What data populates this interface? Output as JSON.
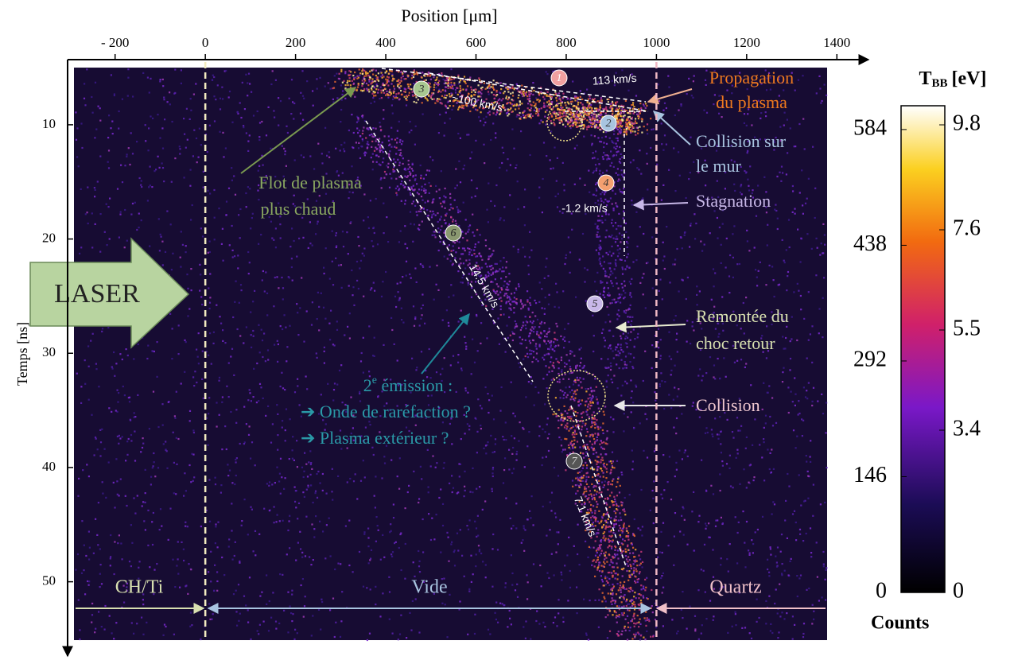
{
  "chart_data": {
    "type": "image",
    "title": "Position [μm]",
    "y_label": "Temps [ns]",
    "xlim": [
      -300,
      1470
    ],
    "xticks": [
      {
        "value": -200,
        "label": "- 200"
      },
      0,
      200,
      400,
      600,
      800,
      1000,
      1200,
      1400
    ],
    "ylim": [
      4.3,
      56.5
    ],
    "yticks": [
      10,
      20,
      30,
      40,
      50
    ],
    "boundaries": [
      0,
      1000
    ],
    "regions": [
      "CH/Ti",
      "Vide",
      "Quartz"
    ],
    "laser": "LASER",
    "colorbar": {
      "title": "T",
      "title_sub": "BB",
      "title_unit": "[eV]",
      "counts_label": "Counts",
      "counts_lim": [
        0,
        614
      ],
      "counts_ticks": [
        0,
        146,
        292,
        438,
        584
      ],
      "temp_lim": [
        0,
        10.2
      ],
      "temp_ticks": [
        0,
        3.4,
        5.5,
        7.6,
        9.8
      ]
    },
    "steps": [
      "1",
      "2",
      "3",
      "4",
      "5",
      "6",
      "7"
    ],
    "velocities": [
      "113 km/s",
      "~100 km/s",
      "-1.2 km/s",
      "14.5 km/s",
      "7.1 km/s"
    ],
    "annotations": {
      "propagation": [
        "Propagation",
        "du plasma"
      ],
      "collision_mur": [
        "Collision sur",
        "le mur"
      ],
      "stagnation": "Stagnation",
      "flot": [
        "Flot de plasma",
        "plus chaud"
      ],
      "remontee": [
        "Remontée du",
        "choc retour"
      ],
      "collision": "Collision",
      "emission": {
        "number": "2",
        "sup": "e",
        "text": " émission :",
        "items": [
          "➔ Onde de raréfaction ?",
          "➔ Plasma extérieur ?"
        ]
      }
    }
  }
}
